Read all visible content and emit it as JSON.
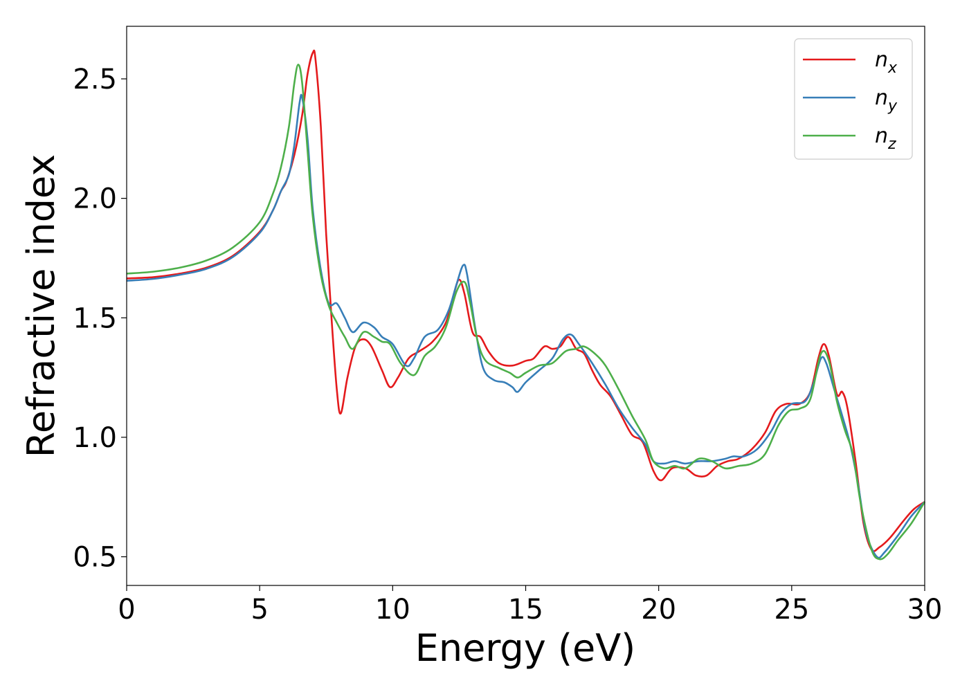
{
  "chart_data": {
    "type": "line",
    "title": "",
    "xlabel": "Energy (eV)",
    "ylabel": "Refractive index",
    "xlim": [
      0,
      30
    ],
    "ylim": [
      0.38,
      2.72
    ],
    "xticks": [
      0,
      5,
      10,
      15,
      20,
      25,
      30
    ],
    "xtick_labels": [
      "0",
      "5",
      "10",
      "15",
      "20",
      "25",
      "30"
    ],
    "yticks": [
      0.5,
      1.0,
      1.5,
      2.0,
      2.5
    ],
    "ytick_labels": [
      "0.5",
      "1.0",
      "1.5",
      "2.0",
      "2.5"
    ],
    "grid": false,
    "legend_position": "top-right",
    "series": [
      {
        "name": "n_x",
        "legend_base": "n",
        "legend_sub": "x",
        "color": "#e41a1c",
        "points": [
          [
            0,
            1.665
          ],
          [
            1,
            1.67
          ],
          [
            2,
            1.685
          ],
          [
            3,
            1.71
          ],
          [
            4,
            1.76
          ],
          [
            5,
            1.86
          ],
          [
            5.5,
            1.95
          ],
          [
            5.8,
            2.03
          ],
          [
            6.0,
            2.07
          ],
          [
            6.3,
            2.18
          ],
          [
            6.6,
            2.35
          ],
          [
            6.8,
            2.52
          ],
          [
            7.0,
            2.61
          ],
          [
            7.1,
            2.58
          ],
          [
            7.3,
            2.3
          ],
          [
            7.5,
            1.85
          ],
          [
            7.7,
            1.5
          ],
          [
            7.9,
            1.2
          ],
          [
            8.05,
            1.1
          ],
          [
            8.3,
            1.25
          ],
          [
            8.6,
            1.38
          ],
          [
            8.9,
            1.41
          ],
          [
            9.2,
            1.38
          ],
          [
            9.6,
            1.28
          ],
          [
            9.9,
            1.21
          ],
          [
            10.2,
            1.25
          ],
          [
            10.6,
            1.33
          ],
          [
            11.0,
            1.36
          ],
          [
            11.5,
            1.4
          ],
          [
            12.0,
            1.48
          ],
          [
            12.3,
            1.6
          ],
          [
            12.5,
            1.66
          ],
          [
            12.7,
            1.6
          ],
          [
            13.0,
            1.44
          ],
          [
            13.3,
            1.42
          ],
          [
            13.6,
            1.36
          ],
          [
            14.0,
            1.31
          ],
          [
            14.5,
            1.3
          ],
          [
            15.0,
            1.32
          ],
          [
            15.3,
            1.33
          ],
          [
            15.7,
            1.38
          ],
          [
            16.0,
            1.37
          ],
          [
            16.3,
            1.38
          ],
          [
            16.6,
            1.42
          ],
          [
            16.9,
            1.37
          ],
          [
            17.2,
            1.35
          ],
          [
            17.5,
            1.28
          ],
          [
            17.8,
            1.22
          ],
          [
            18.2,
            1.17
          ],
          [
            18.6,
            1.09
          ],
          [
            19.0,
            1.01
          ],
          [
            19.4,
            0.98
          ],
          [
            19.8,
            0.86
          ],
          [
            20.1,
            0.82
          ],
          [
            20.5,
            0.87
          ],
          [
            21.0,
            0.87
          ],
          [
            21.4,
            0.84
          ],
          [
            21.8,
            0.84
          ],
          [
            22.2,
            0.88
          ],
          [
            22.6,
            0.9
          ],
          [
            23.0,
            0.91
          ],
          [
            23.5,
            0.95
          ],
          [
            24.0,
            1.02
          ],
          [
            24.4,
            1.11
          ],
          [
            24.8,
            1.14
          ],
          [
            25.3,
            1.14
          ],
          [
            25.7,
            1.19
          ],
          [
            26.0,
            1.33
          ],
          [
            26.2,
            1.39
          ],
          [
            26.4,
            1.34
          ],
          [
            26.7,
            1.18
          ],
          [
            26.9,
            1.19
          ],
          [
            27.1,
            1.12
          ],
          [
            27.4,
            0.9
          ],
          [
            27.7,
            0.64
          ],
          [
            28.0,
            0.53
          ],
          [
            28.3,
            0.54
          ],
          [
            28.7,
            0.58
          ],
          [
            29.2,
            0.65
          ],
          [
            29.6,
            0.7
          ],
          [
            30,
            0.73
          ]
        ]
      },
      {
        "name": "n_y",
        "legend_base": "n",
        "legend_sub": "y",
        "color": "#377eb8",
        "points": [
          [
            0,
            1.655
          ],
          [
            1,
            1.663
          ],
          [
            2,
            1.68
          ],
          [
            3,
            1.705
          ],
          [
            4,
            1.755
          ],
          [
            5,
            1.855
          ],
          [
            5.5,
            1.95
          ],
          [
            5.8,
            2.03
          ],
          [
            6.1,
            2.1
          ],
          [
            6.3,
            2.22
          ],
          [
            6.5,
            2.4
          ],
          [
            6.6,
            2.42
          ],
          [
            6.8,
            2.25
          ],
          [
            7.0,
            1.95
          ],
          [
            7.3,
            1.7
          ],
          [
            7.6,
            1.56
          ],
          [
            7.9,
            1.56
          ],
          [
            8.2,
            1.5
          ],
          [
            8.5,
            1.44
          ],
          [
            8.9,
            1.48
          ],
          [
            9.3,
            1.46
          ],
          [
            9.6,
            1.42
          ],
          [
            10.0,
            1.39
          ],
          [
            10.5,
            1.3
          ],
          [
            10.8,
            1.33
          ],
          [
            11.2,
            1.42
          ],
          [
            11.7,
            1.45
          ],
          [
            12.1,
            1.53
          ],
          [
            12.4,
            1.64
          ],
          [
            12.65,
            1.72
          ],
          [
            12.8,
            1.68
          ],
          [
            13.1,
            1.46
          ],
          [
            13.4,
            1.29
          ],
          [
            13.8,
            1.24
          ],
          [
            14.2,
            1.23
          ],
          [
            14.5,
            1.21
          ],
          [
            14.7,
            1.19
          ],
          [
            15.0,
            1.23
          ],
          [
            15.5,
            1.28
          ],
          [
            16.0,
            1.33
          ],
          [
            16.4,
            1.41
          ],
          [
            16.7,
            1.43
          ],
          [
            17.0,
            1.39
          ],
          [
            17.5,
            1.31
          ],
          [
            18.0,
            1.22
          ],
          [
            18.5,
            1.12
          ],
          [
            19.0,
            1.04
          ],
          [
            19.5,
            0.97
          ],
          [
            19.8,
            0.9
          ],
          [
            20.2,
            0.89
          ],
          [
            20.6,
            0.9
          ],
          [
            21.0,
            0.89
          ],
          [
            21.5,
            0.9
          ],
          [
            22.0,
            0.9
          ],
          [
            22.5,
            0.91
          ],
          [
            22.8,
            0.92
          ],
          [
            23.2,
            0.92
          ],
          [
            23.7,
            0.95
          ],
          [
            24.2,
            1.02
          ],
          [
            24.6,
            1.1
          ],
          [
            25.0,
            1.14
          ],
          [
            25.5,
            1.15
          ],
          [
            25.8,
            1.22
          ],
          [
            26.1,
            1.33
          ],
          [
            26.3,
            1.31
          ],
          [
            26.6,
            1.2
          ],
          [
            26.9,
            1.09
          ],
          [
            27.2,
            0.97
          ],
          [
            27.5,
            0.8
          ],
          [
            27.8,
            0.6
          ],
          [
            28.2,
            0.5
          ],
          [
            28.5,
            0.52
          ],
          [
            29.0,
            0.59
          ],
          [
            29.5,
            0.67
          ],
          [
            30,
            0.73
          ]
        ]
      },
      {
        "name": "n_z",
        "legend_base": "n",
        "legend_sub": "z",
        "color": "#4daf4a",
        "points": [
          [
            0,
            1.685
          ],
          [
            1,
            1.693
          ],
          [
            2,
            1.71
          ],
          [
            3,
            1.74
          ],
          [
            4,
            1.795
          ],
          [
            5,
            1.9
          ],
          [
            5.5,
            2.02
          ],
          [
            5.8,
            2.13
          ],
          [
            6.1,
            2.3
          ],
          [
            6.3,
            2.48
          ],
          [
            6.45,
            2.56
          ],
          [
            6.6,
            2.48
          ],
          [
            6.8,
            2.2
          ],
          [
            7.0,
            1.92
          ],
          [
            7.3,
            1.68
          ],
          [
            7.6,
            1.55
          ],
          [
            7.9,
            1.48
          ],
          [
            8.2,
            1.42
          ],
          [
            8.5,
            1.37
          ],
          [
            8.9,
            1.44
          ],
          [
            9.3,
            1.42
          ],
          [
            9.6,
            1.4
          ],
          [
            9.9,
            1.39
          ],
          [
            10.3,
            1.31
          ],
          [
            10.8,
            1.26
          ],
          [
            11.2,
            1.34
          ],
          [
            11.6,
            1.38
          ],
          [
            12.0,
            1.46
          ],
          [
            12.4,
            1.61
          ],
          [
            12.7,
            1.65
          ],
          [
            12.9,
            1.57
          ],
          [
            13.2,
            1.4
          ],
          [
            13.5,
            1.32
          ],
          [
            14.0,
            1.29
          ],
          [
            14.4,
            1.27
          ],
          [
            14.7,
            1.25
          ],
          [
            15.0,
            1.27
          ],
          [
            15.5,
            1.3
          ],
          [
            16.0,
            1.31
          ],
          [
            16.5,
            1.36
          ],
          [
            16.9,
            1.37
          ],
          [
            17.2,
            1.38
          ],
          [
            17.6,
            1.35
          ],
          [
            18.0,
            1.3
          ],
          [
            18.5,
            1.2
          ],
          [
            19.0,
            1.09
          ],
          [
            19.5,
            0.99
          ],
          [
            19.8,
            0.9
          ],
          [
            20.2,
            0.87
          ],
          [
            20.6,
            0.88
          ],
          [
            21.0,
            0.87
          ],
          [
            21.5,
            0.91
          ],
          [
            22.0,
            0.9
          ],
          [
            22.5,
            0.87
          ],
          [
            23.0,
            0.88
          ],
          [
            23.5,
            0.89
          ],
          [
            24.0,
            0.93
          ],
          [
            24.5,
            1.05
          ],
          [
            24.9,
            1.11
          ],
          [
            25.3,
            1.12
          ],
          [
            25.7,
            1.16
          ],
          [
            26.1,
            1.35
          ],
          [
            26.4,
            1.32
          ],
          [
            26.7,
            1.15
          ],
          [
            27.0,
            1.03
          ],
          [
            27.3,
            0.93
          ],
          [
            27.6,
            0.72
          ],
          [
            28.0,
            0.53
          ],
          [
            28.3,
            0.49
          ],
          [
            28.6,
            0.51
          ],
          [
            29.0,
            0.57
          ],
          [
            29.5,
            0.64
          ],
          [
            30,
            0.73
          ]
        ]
      }
    ]
  }
}
